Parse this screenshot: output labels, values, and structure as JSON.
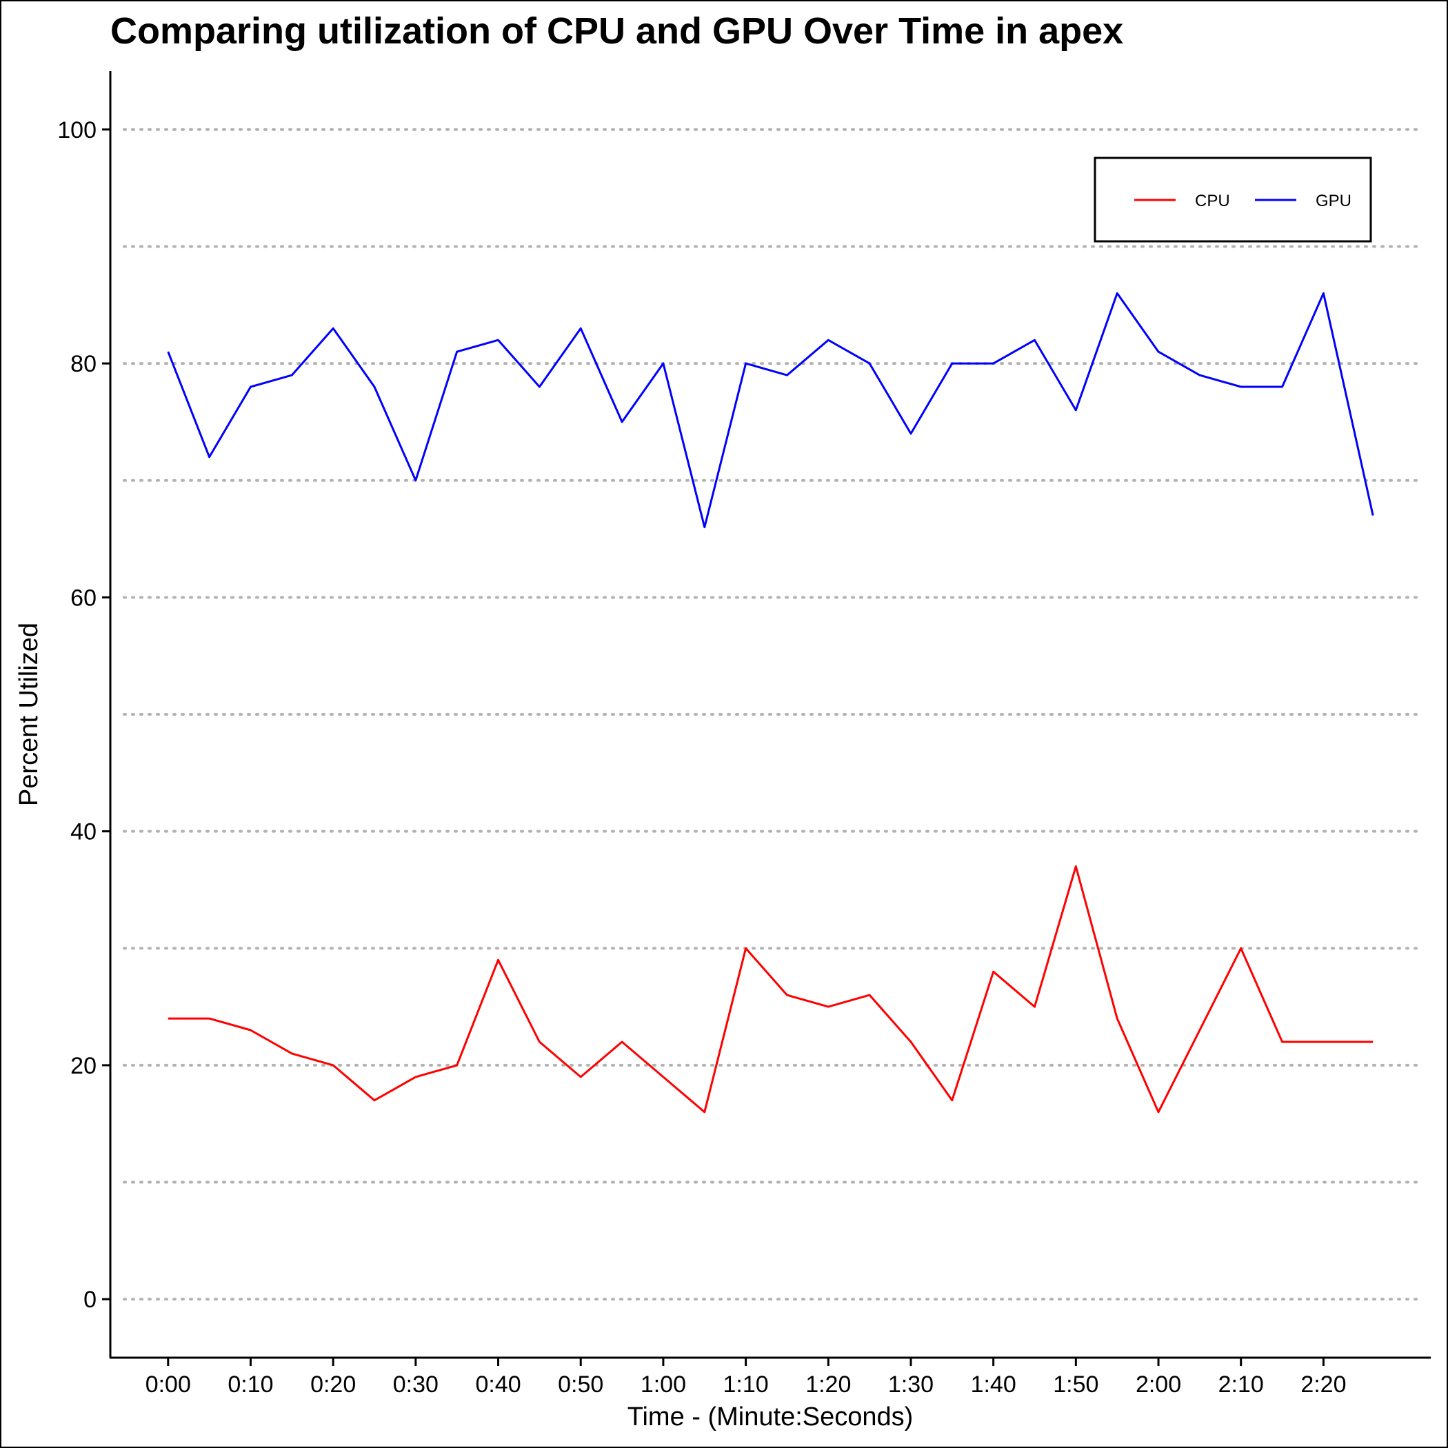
{
  "chart_data": {
    "type": "line",
    "title": "Comparing utilization of CPU and GPU Over Time in apex",
    "xlabel": "Time - (Minute:Seconds)",
    "ylabel": "Percent Utilized",
    "x_ticks": [
      "0:00",
      "0:10",
      "0:20",
      "0:30",
      "0:40",
      "0:50",
      "1:00",
      "1:10",
      "1:20",
      "1:30",
      "1:40",
      "1:50",
      "2:00",
      "2:10",
      "2:20"
    ],
    "y_ticks": [
      "0",
      "20",
      "40",
      "60",
      "80",
      "100"
    ],
    "xlim": [
      "-0:07",
      "2:33"
    ],
    "ylim": [
      -5,
      105
    ],
    "grid": "horizontal dotted gridlines every 10",
    "legend_position": "top-right",
    "legend": [
      {
        "label": "CPU",
        "color": "#ff0000"
      },
      {
        "label": "GPU",
        "color": "#0000ff"
      }
    ],
    "x": [
      "0:00",
      "0:05",
      "0:10",
      "0:15",
      "0:20",
      "0:25",
      "0:30",
      "0:35",
      "0:40",
      "0:45",
      "0:50",
      "0:55",
      "1:00",
      "1:05",
      "1:10",
      "1:15",
      "1:20",
      "1:25",
      "1:30",
      "1:35",
      "1:40",
      "1:45",
      "1:50",
      "1:55",
      "2:00",
      "2:05",
      "2:10",
      "2:15",
      "2:20",
      "2:26"
    ],
    "series": [
      {
        "name": "CPU",
        "color": "#ff0000",
        "values": [
          24,
          24,
          23,
          21,
          20,
          17,
          19,
          20,
          29,
          22,
          19,
          22,
          19,
          16,
          30,
          26,
          25,
          26,
          22,
          17,
          28,
          25,
          37,
          24,
          16,
          23,
          30,
          22,
          22,
          22
        ]
      },
      {
        "name": "GPU",
        "color": "#0000ff",
        "values": [
          81,
          72,
          78,
          79,
          83,
          78,
          70,
          81,
          82,
          78,
          83,
          75,
          80,
          66,
          80,
          79,
          82,
          80,
          74,
          80,
          80,
          82,
          76,
          86,
          81,
          79,
          78,
          78,
          86,
          67
        ]
      }
    ]
  }
}
